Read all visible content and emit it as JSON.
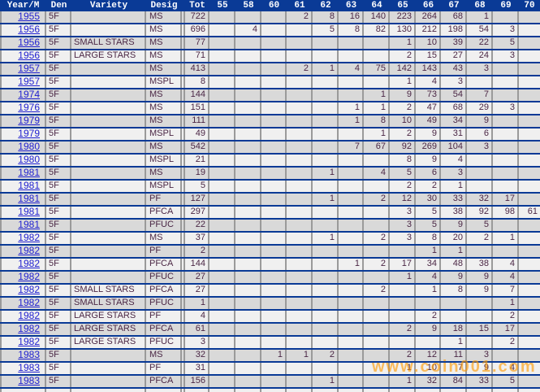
{
  "table": {
    "columns": [
      "Year/M",
      "Den",
      "Variety",
      "Desig",
      "Tot",
      "55",
      "58",
      "60",
      "61",
      "62",
      "63",
      "64",
      "65",
      "66",
      "67",
      "68",
      "69",
      "70"
    ],
    "rows": [
      {
        "year": "1955",
        "den": "5F",
        "variety": "",
        "desig": "MS",
        "tot": "722",
        "grades": {
          "61": "2",
          "62": "8",
          "63": "16",
          "64": "140",
          "65": "223",
          "66": "264",
          "67": "68",
          "68": "1"
        }
      },
      {
        "year": "1956",
        "den": "5F",
        "variety": "",
        "desig": "MS",
        "tot": "696",
        "grades": {
          "58": "4",
          "62": "5",
          "63": "8",
          "64": "82",
          "65": "130",
          "66": "212",
          "67": "198",
          "68": "54",
          "69": "3"
        }
      },
      {
        "year": "1956",
        "den": "5F",
        "variety": "SMALL STARS",
        "desig": "MS",
        "tot": "77",
        "grades": {
          "65": "1",
          "66": "10",
          "67": "39",
          "68": "22",
          "69": "5"
        }
      },
      {
        "year": "1956",
        "den": "5F",
        "variety": "LARGE STARS",
        "desig": "MS",
        "tot": "71",
        "grades": {
          "65": "2",
          "66": "15",
          "67": "27",
          "68": "24",
          "69": "3"
        }
      },
      {
        "year": "1957",
        "den": "5F",
        "variety": "",
        "desig": "MS",
        "tot": "413",
        "grades": {
          "61": "2",
          "62": "1",
          "63": "4",
          "64": "75",
          "65": "142",
          "66": "143",
          "67": "43",
          "68": "3"
        }
      },
      {
        "year": "1957",
        "den": "5F",
        "variety": "",
        "desig": "MSPL",
        "tot": "8",
        "grades": {
          "65": "1",
          "66": "4",
          "67": "3"
        }
      },
      {
        "year": "1974",
        "den": "5F",
        "variety": "",
        "desig": "MS",
        "tot": "144",
        "grades": {
          "64": "1",
          "65": "9",
          "66": "73",
          "67": "54",
          "68": "7"
        }
      },
      {
        "year": "1976",
        "den": "5F",
        "variety": "",
        "desig": "MS",
        "tot": "151",
        "grades": {
          "63": "1",
          "64": "1",
          "65": "2",
          "66": "47",
          "67": "68",
          "68": "29",
          "69": "3"
        }
      },
      {
        "year": "1979",
        "den": "5F",
        "variety": "",
        "desig": "MS",
        "tot": "111",
        "grades": {
          "63": "1",
          "64": "8",
          "65": "10",
          "66": "49",
          "67": "34",
          "68": "9"
        }
      },
      {
        "year": "1979",
        "den": "5F",
        "variety": "",
        "desig": "MSPL",
        "tot": "49",
        "grades": {
          "64": "1",
          "65": "2",
          "66": "9",
          "67": "31",
          "68": "6"
        }
      },
      {
        "year": "1980",
        "den": "5F",
        "variety": "",
        "desig": "MS",
        "tot": "542",
        "grades": {
          "63": "7",
          "64": "67",
          "65": "92",
          "66": "269",
          "67": "104",
          "68": "3"
        }
      },
      {
        "year": "1980",
        "den": "5F",
        "variety": "",
        "desig": "MSPL",
        "tot": "21",
        "grades": {
          "65": "8",
          "66": "9",
          "67": "4"
        }
      },
      {
        "year": "1981",
        "den": "5F",
        "variety": "",
        "desig": "MS",
        "tot": "19",
        "grades": {
          "62": "1",
          "64": "4",
          "65": "5",
          "66": "6",
          "67": "3"
        }
      },
      {
        "year": "1981",
        "den": "5F",
        "variety": "",
        "desig": "MSPL",
        "tot": "5",
        "grades": {
          "65": "2",
          "66": "2",
          "67": "1"
        }
      },
      {
        "year": "1981",
        "den": "5F",
        "variety": "",
        "desig": "PF",
        "tot": "127",
        "grades": {
          "62": "1",
          "64": "2",
          "65": "12",
          "66": "30",
          "67": "33",
          "68": "32",
          "69": "17"
        }
      },
      {
        "year": "1981",
        "den": "5F",
        "variety": "",
        "desig": "PFCA",
        "tot": "297",
        "grades": {
          "65": "3",
          "66": "5",
          "67": "38",
          "68": "92",
          "69": "98",
          "70": "61"
        }
      },
      {
        "year": "1981",
        "den": "5F",
        "variety": "",
        "desig": "PFUC",
        "tot": "22",
        "grades": {
          "65": "3",
          "66": "5",
          "67": "9",
          "68": "5"
        }
      },
      {
        "year": "1982",
        "den": "5F",
        "variety": "",
        "desig": "MS",
        "tot": "37",
        "grades": {
          "62": "1",
          "64": "2",
          "65": "3",
          "66": "8",
          "67": "20",
          "68": "2",
          "69": "1"
        }
      },
      {
        "year": "1982",
        "den": "5F",
        "variety": "",
        "desig": "PF",
        "tot": "2",
        "grades": {
          "66": "1",
          "67": "1"
        }
      },
      {
        "year": "1982",
        "den": "5F",
        "variety": "",
        "desig": "PFCA",
        "tot": "144",
        "grades": {
          "63": "1",
          "64": "2",
          "65": "17",
          "66": "34",
          "67": "48",
          "68": "38",
          "69": "4"
        }
      },
      {
        "year": "1982",
        "den": "5F",
        "variety": "",
        "desig": "PFUC",
        "tot": "27",
        "grades": {
          "65": "1",
          "66": "4",
          "67": "9",
          "68": "9",
          "69": "4"
        }
      },
      {
        "year": "1982",
        "den": "5F",
        "variety": "SMALL STARS",
        "desig": "PFCA",
        "tot": "27",
        "grades": {
          "64": "2",
          "66": "1",
          "67": "8",
          "68": "9",
          "69": "7"
        }
      },
      {
        "year": "1982",
        "den": "5F",
        "variety": "SMALL STARS",
        "desig": "PFUC",
        "tot": "1",
        "grades": {
          "69": "1"
        }
      },
      {
        "year": "1982",
        "den": "5F",
        "variety": "LARGE STARS",
        "desig": "PF",
        "tot": "4",
        "grades": {
          "66": "2",
          "69": "2"
        }
      },
      {
        "year": "1982",
        "den": "5F",
        "variety": "LARGE STARS",
        "desig": "PFCA",
        "tot": "61",
        "grades": {
          "65": "2",
          "66": "9",
          "67": "18",
          "68": "15",
          "69": "17"
        }
      },
      {
        "year": "1982",
        "den": "5F",
        "variety": "LARGE STARS",
        "desig": "PFUC",
        "tot": "3",
        "grades": {
          "67": "1",
          "69": "2"
        }
      },
      {
        "year": "1983",
        "den": "5F",
        "variety": "",
        "desig": "MS",
        "tot": "32",
        "grades": {
          "60": "1",
          "61": "1",
          "62": "2",
          "65": "2",
          "66": "12",
          "67": "11",
          "68": "3"
        }
      },
      {
        "year": "1983",
        "den": "5F",
        "variety": "",
        "desig": "PF",
        "tot": "31",
        "grades": {
          "65": "1",
          "66": "10",
          "67": "7",
          "68": "9",
          "69": "4"
        }
      },
      {
        "year": "1983",
        "den": "5F",
        "variety": "",
        "desig": "PFCA",
        "tot": "156",
        "grades": {
          "62": "1",
          "65": "1",
          "66": "32",
          "67": "84",
          "68": "33",
          "69": "5"
        }
      }
    ]
  },
  "watermark": {
    "text": "www.coin001.com"
  },
  "colors": {
    "header_bg": "#0a3a96",
    "row_separator": "#0a3a96",
    "grid_line": "#9a9a9a",
    "row_shaded": "#d9d9d9",
    "row_plain": "#f0f0f0",
    "year_link": "#1f1fd0",
    "data_text": "#4b2745",
    "watermark_orange": "#ff9900"
  }
}
